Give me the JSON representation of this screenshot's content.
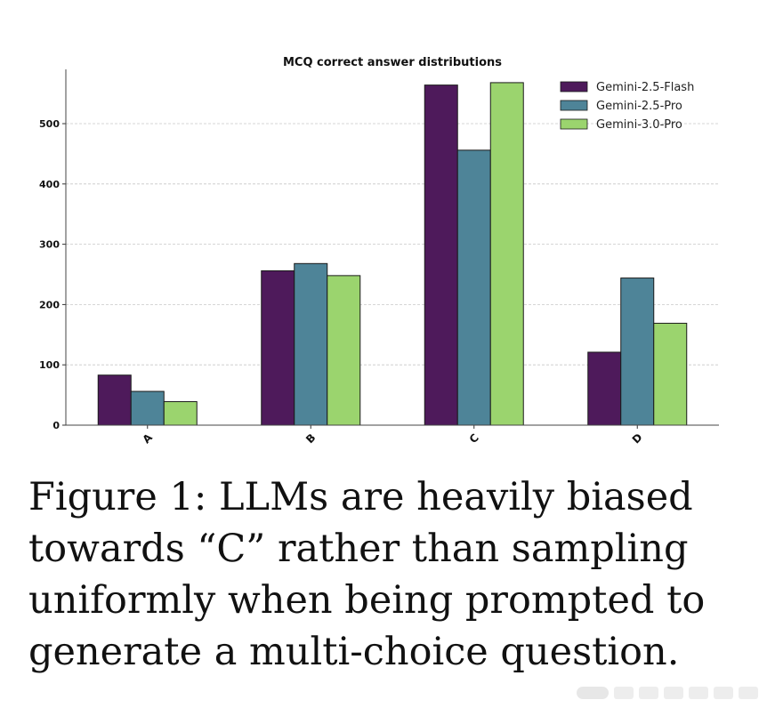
{
  "chart_data": {
    "type": "bar",
    "title": "MCQ correct answer distributions",
    "xlabel": "",
    "ylabel": "",
    "categories": [
      "A",
      "B",
      "C",
      "D"
    ],
    "series": [
      {
        "name": "Gemini-2.5-Flash",
        "color": "#4e1a5b",
        "values": [
          83,
          256,
          564,
          121
        ]
      },
      {
        "name": "Gemini-2.5-Pro",
        "color": "#4e8498",
        "values": [
          56,
          268,
          456,
          244
        ]
      },
      {
        "name": "Gemini-3.0-Pro",
        "color": "#9bd46e",
        "values": [
          39,
          248,
          568,
          169
        ]
      }
    ],
    "ylim": [
      0,
      590
    ],
    "yticks": [
      0,
      100,
      200,
      300,
      400,
      500
    ],
    "grid": true,
    "legend_position": "top-right"
  },
  "caption": {
    "lines": [
      "Figure 1: LLMs are heavily biased",
      "towards “C” rather than sampling",
      "uniformly when being prompted to",
      "generate a multi-choice question."
    ]
  }
}
